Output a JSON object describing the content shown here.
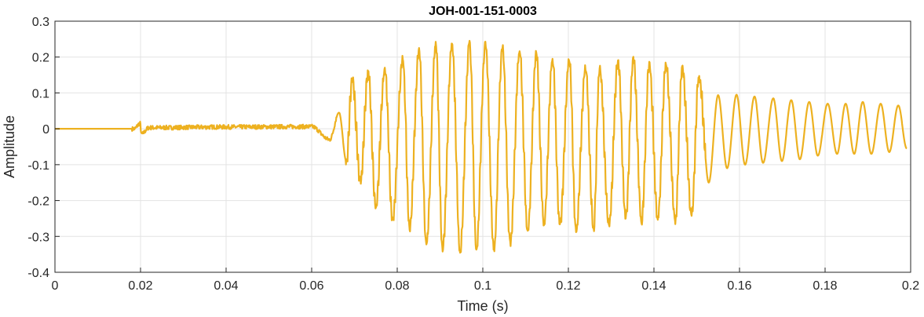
{
  "chart_data": {
    "type": "line",
    "title": "JOH-001-151-0003",
    "xlabel": "Time (s)",
    "ylabel": "Amplitude",
    "xlim": [
      0,
      0.2
    ],
    "ylim": [
      -0.4,
      0.3
    ],
    "xticks": [
      0,
      0.02,
      0.04,
      0.06,
      0.08,
      0.1,
      0.12,
      0.14,
      0.16,
      0.18,
      0.2
    ],
    "xtick_labels": [
      "0",
      "0.02",
      "0.04",
      "0.06",
      "0.08",
      "0.1",
      "0.12",
      "0.14",
      "0.16",
      "0.18",
      "0.2"
    ],
    "yticks": [
      0.3,
      0.2,
      0.1,
      0,
      -0.1,
      -0.2,
      -0.3,
      -0.4
    ],
    "ytick_labels": [
      "0.3",
      "0.2",
      "0.1",
      "0",
      "-0.1",
      "-0.2",
      "-0.3",
      "-0.4"
    ],
    "grid": true,
    "color": "#EDB120",
    "series": [
      {
        "name": "waveform",
        "points": [
          [
            0,
            0
          ],
          [
            0.0185,
            0
          ],
          [
            0.0199,
            0.015
          ],
          [
            0.0202,
            -0.015
          ],
          [
            0.022,
            0.003
          ],
          [
            0.04,
            0.005
          ],
          [
            0.06,
            0.006
          ],
          [
            0.0642,
            -0.03
          ],
          [
            0.0664,
            0.045
          ],
          [
            0.0681,
            -0.09
          ],
          [
            0.0695,
            0.136
          ],
          [
            0.0714,
            -0.149
          ],
          [
            0.0732,
            0.157
          ],
          [
            0.075,
            -0.217
          ],
          [
            0.0771,
            0.168
          ],
          [
            0.0789,
            -0.254
          ],
          [
            0.0813,
            0.195
          ],
          [
            0.0829,
            -0.278
          ],
          [
            0.0851,
            0.223
          ],
          [
            0.0868,
            -0.326
          ],
          [
            0.089,
            0.236
          ],
          [
            0.0906,
            -0.335
          ],
          [
            0.0928,
            0.24
          ],
          [
            0.0947,
            -0.341
          ],
          [
            0.0969,
            0.24
          ],
          [
            0.0985,
            -0.335
          ],
          [
            0.1006,
            0.24
          ],
          [
            0.1026,
            -0.337
          ],
          [
            0.1046,
            0.23
          ],
          [
            0.1064,
            -0.32
          ],
          [
            0.1086,
            0.217
          ],
          [
            0.1105,
            -0.289
          ],
          [
            0.1125,
            0.21
          ],
          [
            0.1143,
            -0.265
          ],
          [
            0.1163,
            0.195
          ],
          [
            0.118,
            -0.27
          ],
          [
            0.1202,
            0.195
          ],
          [
            0.1218,
            -0.287
          ],
          [
            0.124,
            0.17
          ],
          [
            0.1259,
            -0.28
          ],
          [
            0.1273,
            0.17
          ],
          [
            0.1295,
            -0.27
          ],
          [
            0.1316,
            0.19
          ],
          [
            0.1334,
            -0.25
          ],
          [
            0.1352,
            0.195
          ],
          [
            0.1371,
            -0.26
          ],
          [
            0.1389,
            0.18
          ],
          [
            0.1409,
            -0.25
          ],
          [
            0.1428,
            0.18
          ],
          [
            0.145,
            -0.26
          ],
          [
            0.1466,
            0.17
          ],
          [
            0.1488,
            -0.24
          ],
          [
            0.1505,
            0.147
          ],
          [
            0.1528,
            -0.15
          ],
          [
            0.155,
            0.094
          ],
          [
            0.1571,
            -0.11
          ],
          [
            0.1593,
            0.095
          ],
          [
            0.1613,
            -0.1
          ],
          [
            0.1635,
            0.09
          ],
          [
            0.1655,
            -0.095
          ],
          [
            0.1679,
            0.085
          ],
          [
            0.1699,
            -0.09
          ],
          [
            0.1721,
            0.08
          ],
          [
            0.1741,
            -0.085
          ],
          [
            0.1763,
            0.075
          ],
          [
            0.1783,
            -0.075
          ],
          [
            0.1806,
            0.07
          ],
          [
            0.1828,
            -0.07
          ],
          [
            0.1848,
            0.07
          ],
          [
            0.1868,
            -0.07
          ],
          [
            0.1888,
            0.075
          ],
          [
            0.1908,
            -0.07
          ],
          [
            0.193,
            0.07
          ],
          [
            0.195,
            -0.065
          ],
          [
            0.1971,
            0.065
          ],
          [
            0.1991,
            -0.055
          ]
        ]
      }
    ]
  }
}
